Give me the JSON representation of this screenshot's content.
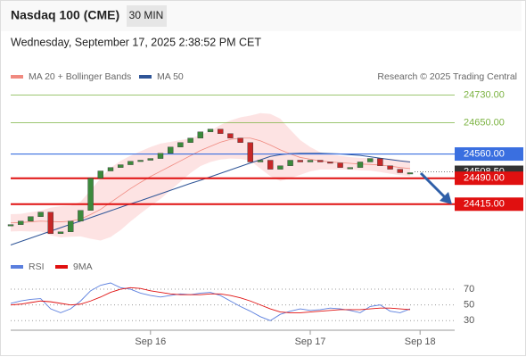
{
  "header": {
    "title": "Nasdaq 100 (CME)",
    "timeframe": "30 MIN",
    "datetime": "Wednesday, September 17, 2025 2:38:52 PM CET",
    "credit": "Research © 2025 Trading Central"
  },
  "chart_data": [
    {
      "type": "candlestick",
      "close": [
        24356,
        24366,
        24379,
        24392,
        24330,
        24335,
        24366,
        24397,
        24490,
        24511,
        24521,
        24529,
        24539,
        24542,
        24547,
        24562,
        24580,
        24593,
        24606,
        24624,
        24632,
        24619,
        24606,
        24593,
        24537,
        24542,
        24516,
        24526,
        24542,
        24537,
        24542,
        24537,
        24534,
        24521,
        24521,
        24537,
        24547,
        24526,
        24516,
        24506,
        24506,
        null
      ],
      "series": [
        {
          "name": "MA 20 + Bollinger Bands",
          "color": "#f08a80",
          "values": [
            24361,
            24362,
            24364,
            24366,
            24365,
            24364,
            24366,
            24372,
            24385,
            24400,
            24420,
            24440,
            24460,
            24478,
            24495,
            24510,
            24525,
            24540,
            24555,
            24570,
            24582,
            24594,
            24602,
            24606,
            24606,
            24598,
            24586,
            24572,
            24560,
            24550,
            24545,
            24540,
            24537,
            24535,
            24533,
            24531,
            24530,
            24528,
            24525,
            24521,
            24518,
            null
          ],
          "upper": [
            24386,
            24387,
            24392,
            24396,
            24405,
            24409,
            24411,
            24422,
            24455,
            24490,
            24520,
            24540,
            24555,
            24568,
            24580,
            24590,
            24595,
            24600,
            24605,
            24615,
            24627,
            24644,
            24657,
            24666,
            24671,
            24678,
            24676,
            24662,
            24630,
            24600,
            24580,
            24565,
            24559,
            24555,
            24551,
            24549,
            24548,
            24548,
            24547,
            24543,
            24540,
            null
          ],
          "lower": [
            24336,
            24337,
            24336,
            24336,
            24325,
            24319,
            24321,
            24322,
            24315,
            24310,
            24320,
            24340,
            24365,
            24388,
            24410,
            24430,
            24455,
            24480,
            24505,
            24525,
            24537,
            24544,
            24547,
            24546,
            24541,
            24518,
            24496,
            24482,
            24490,
            24500,
            24510,
            24515,
            24515,
            24515,
            24515,
            24513,
            24512,
            24508,
            24503,
            24499,
            24496,
            null
          ]
        },
        {
          "name": "MA 50",
          "color": "#2f5597",
          "values": [
            24297,
            24307,
            24317,
            24327,
            24337,
            24347,
            24357,
            24366,
            24376,
            24386,
            24396,
            24406,
            24416,
            24425,
            24435,
            24445,
            24455,
            24465,
            24475,
            24484,
            24494,
            24504,
            24514,
            24524,
            24534,
            24543,
            24553,
            24558,
            24561,
            24562,
            24562,
            24562,
            24561,
            24560,
            24558,
            24556,
            24552,
            24548,
            24544,
            24540,
            24537,
            null
          ]
        }
      ],
      "ylim": [
        24270,
        24760
      ],
      "levels": [
        {
          "value": 24730,
          "label": "24730.00",
          "color": "#7cb342",
          "style": "thin"
        },
        {
          "value": 24650,
          "label": "24650.00",
          "color": "#7cb342",
          "style": "thin"
        },
        {
          "value": 24560,
          "label": "24560.00",
          "color": "#3a6fe0",
          "style": "box"
        },
        {
          "value": 24508.5,
          "label": "24508.50",
          "color": "#333333",
          "style": "last"
        },
        {
          "value": 24490,
          "label": "24490.00",
          "color": "#e01010",
          "style": "box"
        },
        {
          "value": 24415,
          "label": "24415.00",
          "color": "#e01010",
          "style": "box"
        }
      ]
    },
    {
      "type": "line",
      "categories": [
        null,
        null,
        null,
        null,
        null,
        null,
        null,
        null,
        null,
        null,
        null,
        null,
        null,
        null,
        "Sep 16",
        null,
        null,
        null,
        null,
        null,
        null,
        null,
        null,
        null,
        null,
        null,
        null,
        null,
        null,
        null,
        "Sep 17",
        null,
        null,
        null,
        null,
        null,
        null,
        null,
        null,
        null,
        null,
        "Sep 18"
      ],
      "series": [
        {
          "name": "RSI",
          "color": "#5b7fde",
          "values": [
            52,
            55,
            57,
            58,
            45,
            40,
            45,
            55,
            68,
            75,
            78,
            72,
            70,
            65,
            62,
            60,
            62,
            64,
            63,
            65,
            66,
            62,
            55,
            48,
            42,
            35,
            30,
            38,
            42,
            45,
            43,
            44,
            46,
            45,
            43,
            40,
            48,
            50,
            42,
            40,
            45,
            null
          ]
        },
        {
          "name": "9MA",
          "color": "#e01010",
          "values": [
            50,
            51,
            53,
            55,
            54,
            52,
            50,
            51,
            55,
            60,
            66,
            70,
            72,
            71,
            68,
            66,
            64,
            63,
            63,
            63,
            64,
            64,
            62,
            59,
            55,
            50,
            45,
            41,
            40,
            40,
            41,
            42,
            43,
            44,
            44,
            44,
            45,
            46,
            46,
            45,
            44,
            null
          ]
        }
      ],
      "ylim": [
        20,
        86
      ],
      "yticks": [
        70,
        50,
        30
      ],
      "grid": true
    }
  ]
}
